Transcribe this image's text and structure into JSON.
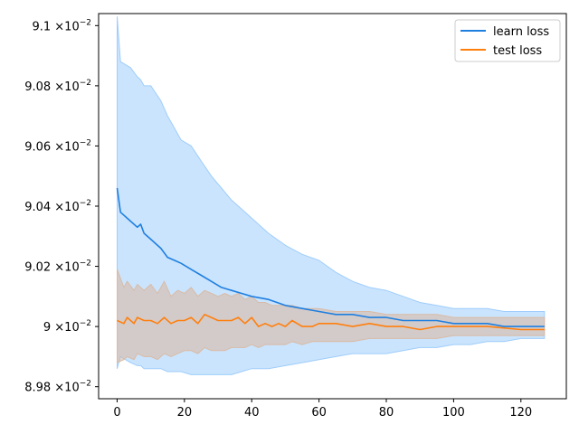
{
  "chart_data": {
    "type": "line",
    "title": "",
    "xlabel": "",
    "ylabel": "",
    "xlim": [
      -5.5,
      133.5
    ],
    "ylim": [
      0.08976,
      0.09104
    ],
    "y_scale_note": "y tick labels shown in scientific notation ×10^-2",
    "x_ticks": [
      0,
      20,
      40,
      60,
      80,
      100,
      120
    ],
    "x_tick_labels": [
      "0",
      "20",
      "40",
      "60",
      "80",
      "100",
      "120"
    ],
    "y_ticks": [
      0.0898,
      0.09,
      0.0902,
      0.0904,
      0.0906,
      0.0908,
      0.091
    ],
    "y_tick_labels": [
      {
        "mantissa": "8.98",
        "times": "×10",
        "exp": "−2"
      },
      {
        "mantissa": "9",
        "times": "×10",
        "exp": "−2"
      },
      {
        "mantissa": "9.02",
        "times": "×10",
        "exp": "−2"
      },
      {
        "mantissa": "9.04",
        "times": "×10",
        "exp": "−2"
      },
      {
        "mantissa": "9.06",
        "times": "×10",
        "exp": "−2"
      },
      {
        "mantissa": "9.08",
        "times": "×10",
        "exp": "−2"
      },
      {
        "mantissa": "9.1",
        "times": "×10",
        "exp": "−2"
      }
    ],
    "legend_position": "top-right",
    "grid": false,
    "series": [
      {
        "name": "learn loss",
        "color": "#1f7fe0",
        "band_color": "#9fcdfb",
        "x": [
          0,
          1,
          4,
          6,
          7,
          8,
          10,
          13,
          15,
          17,
          19,
          22,
          25,
          28,
          31,
          34,
          37,
          40,
          45,
          50,
          55,
          60,
          65,
          70,
          75,
          80,
          85,
          90,
          95,
          100,
          105,
          110,
          115,
          120,
          125,
          127
        ],
        "mean": [
          0.09046,
          0.09038,
          0.09035,
          0.09033,
          0.09034,
          0.09031,
          0.09029,
          0.09026,
          0.09023,
          0.09022,
          0.09021,
          0.09019,
          0.09017,
          0.09015,
          0.09013,
          0.09012,
          0.09011,
          0.0901,
          0.09009,
          0.09007,
          0.09006,
          0.09005,
          0.09004,
          0.09004,
          0.09003,
          0.09003,
          0.09002,
          0.09002,
          0.09002,
          0.09001,
          0.09001,
          0.09001,
          0.09,
          0.09,
          0.09,
          0.09
        ],
        "upper": [
          0.09103,
          0.09088,
          0.09086,
          0.09083,
          0.09082,
          0.0908,
          0.0908,
          0.09075,
          0.0907,
          0.09066,
          0.09062,
          0.0906,
          0.09055,
          0.0905,
          0.09046,
          0.09042,
          0.09039,
          0.09036,
          0.09031,
          0.09027,
          0.09024,
          0.09022,
          0.09018,
          0.09015,
          0.09013,
          0.09012,
          0.0901,
          0.09008,
          0.09007,
          0.09006,
          0.09006,
          0.09006,
          0.09005,
          0.09005,
          0.09005,
          0.09005
        ],
        "lower": [
          0.08986,
          0.0899,
          0.08988,
          0.08987,
          0.08987,
          0.08986,
          0.08986,
          0.08986,
          0.08985,
          0.08985,
          0.08985,
          0.08984,
          0.08984,
          0.08984,
          0.08984,
          0.08984,
          0.08985,
          0.08986,
          0.08986,
          0.08987,
          0.08988,
          0.08989,
          0.0899,
          0.08991,
          0.08991,
          0.08991,
          0.08992,
          0.08993,
          0.08993,
          0.08994,
          0.08994,
          0.08995,
          0.08995,
          0.08996,
          0.08996,
          0.08996
        ]
      },
      {
        "name": "test loss",
        "color": "#ff7f0e",
        "band_color": "#d9bba6",
        "x": [
          0,
          2,
          3,
          5,
          6,
          8,
          10,
          12,
          14,
          16,
          18,
          20,
          22,
          24,
          26,
          28,
          30,
          32,
          34,
          36,
          38,
          40,
          42,
          44,
          46,
          48,
          50,
          52,
          55,
          58,
          60,
          65,
          70,
          75,
          80,
          85,
          90,
          95,
          100,
          110,
          120,
          127
        ],
        "mean": [
          0.09002,
          0.09001,
          0.09003,
          0.09001,
          0.09003,
          0.09002,
          0.09002,
          0.09001,
          0.09003,
          0.09001,
          0.09002,
          0.09002,
          0.09003,
          0.09001,
          0.09004,
          0.09003,
          0.09002,
          0.09002,
          0.09002,
          0.09003,
          0.09001,
          0.09003,
          0.09,
          0.09001,
          0.09,
          0.09001,
          0.09,
          0.09002,
          0.09,
          0.09,
          0.09001,
          0.09001,
          0.09,
          0.09001,
          0.09,
          0.09,
          0.08999,
          0.09,
          0.09,
          0.09,
          0.08999,
          0.08999
        ],
        "upper": [
          0.09019,
          0.09013,
          0.09015,
          0.09012,
          0.09014,
          0.09012,
          0.09014,
          0.09011,
          0.09015,
          0.0901,
          0.09012,
          0.09011,
          0.09013,
          0.0901,
          0.09012,
          0.09011,
          0.0901,
          0.09011,
          0.0901,
          0.09011,
          0.09009,
          0.0901,
          0.09008,
          0.09008,
          0.09007,
          0.09007,
          0.09007,
          0.09007,
          0.09006,
          0.09006,
          0.09006,
          0.09005,
          0.09005,
          0.09005,
          0.09004,
          0.09004,
          0.09004,
          0.09004,
          0.09003,
          0.09003,
          0.09003,
          0.09003
        ],
        "lower": [
          0.08988,
          0.08989,
          0.0899,
          0.08989,
          0.08991,
          0.0899,
          0.0899,
          0.08989,
          0.08991,
          0.0899,
          0.08991,
          0.08992,
          0.08992,
          0.08991,
          0.08993,
          0.08992,
          0.08992,
          0.08992,
          0.08993,
          0.08993,
          0.08993,
          0.08994,
          0.08993,
          0.08994,
          0.08994,
          0.08994,
          0.08994,
          0.08995,
          0.08994,
          0.08995,
          0.08995,
          0.08995,
          0.08995,
          0.08996,
          0.08996,
          0.08996,
          0.08996,
          0.08996,
          0.08997,
          0.08997,
          0.08997,
          0.08997
        ]
      }
    ]
  }
}
